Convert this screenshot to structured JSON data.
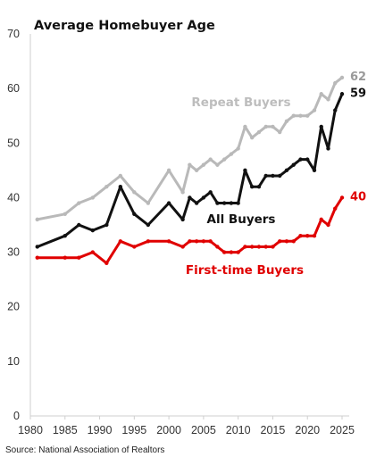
{
  "chart_data": {
    "type": "line",
    "title": "Average Homebuyer Age",
    "source": "Source: National Association of Realtors",
    "xlabel": "",
    "ylabel": "",
    "xlim": [
      1980,
      2025
    ],
    "ylim": [
      0,
      70
    ],
    "x_ticks": [
      1980,
      1985,
      1990,
      1995,
      2000,
      2005,
      2010,
      2015,
      2020,
      2025
    ],
    "y_ticks": [
      0,
      10,
      20,
      30,
      40,
      50,
      60,
      70
    ],
    "grid": false,
    "series": [
      {
        "name": "Repeat Buyers",
        "color": "#b9b9b9",
        "end_label": "62",
        "x": [
          1981,
          1985,
          1987,
          1989,
          1991,
          1993,
          1995,
          1997,
          2000,
          2002,
          2003,
          2004,
          2005,
          2006,
          2007,
          2008,
          2009,
          2010,
          2011,
          2012,
          2013,
          2014,
          2015,
          2016,
          2017,
          2018,
          2019,
          2020,
          2021,
          2022,
          2023,
          2024,
          2025
        ],
        "values": [
          36,
          37,
          39,
          40,
          42,
          44,
          41,
          39,
          45,
          41,
          46,
          45,
          46,
          47,
          46,
          47,
          48,
          49,
          53,
          51,
          52,
          53,
          53,
          52,
          54,
          55,
          55,
          55,
          56,
          59,
          58,
          61,
          62
        ]
      },
      {
        "name": "All Buyers",
        "color": "#111111",
        "end_label": "59",
        "x": [
          1981,
          1985,
          1987,
          1989,
          1991,
          1993,
          1995,
          1997,
          2000,
          2002,
          2003,
          2004,
          2005,
          2006,
          2007,
          2008,
          2009,
          2010,
          2011,
          2012,
          2013,
          2014,
          2015,
          2016,
          2017,
          2018,
          2019,
          2020,
          2021,
          2022,
          2023,
          2024,
          2025
        ],
        "values": [
          31,
          33,
          35,
          34,
          35,
          42,
          37,
          35,
          39,
          36,
          40,
          39,
          40,
          41,
          39,
          39,
          39,
          39,
          45,
          42,
          42,
          44,
          44,
          44,
          45,
          46,
          47,
          47,
          45,
          53,
          49,
          56,
          59
        ]
      },
      {
        "name": "First-time Buyers",
        "color": "#e00000",
        "end_label": "40",
        "x": [
          1981,
          1985,
          1987,
          1989,
          1991,
          1993,
          1995,
          1997,
          2000,
          2002,
          2003,
          2004,
          2005,
          2006,
          2007,
          2008,
          2009,
          2010,
          2011,
          2012,
          2013,
          2014,
          2015,
          2016,
          2017,
          2018,
          2019,
          2020,
          2021,
          2022,
          2023,
          2024,
          2025
        ],
        "values": [
          29,
          29,
          29,
          30,
          28,
          32,
          31,
          32,
          32,
          31,
          32,
          32,
          32,
          32,
          31,
          30,
          30,
          30,
          31,
          31,
          31,
          31,
          31,
          32,
          32,
          32,
          33,
          33,
          33,
          36,
          35,
          38,
          40
        ]
      }
    ]
  }
}
